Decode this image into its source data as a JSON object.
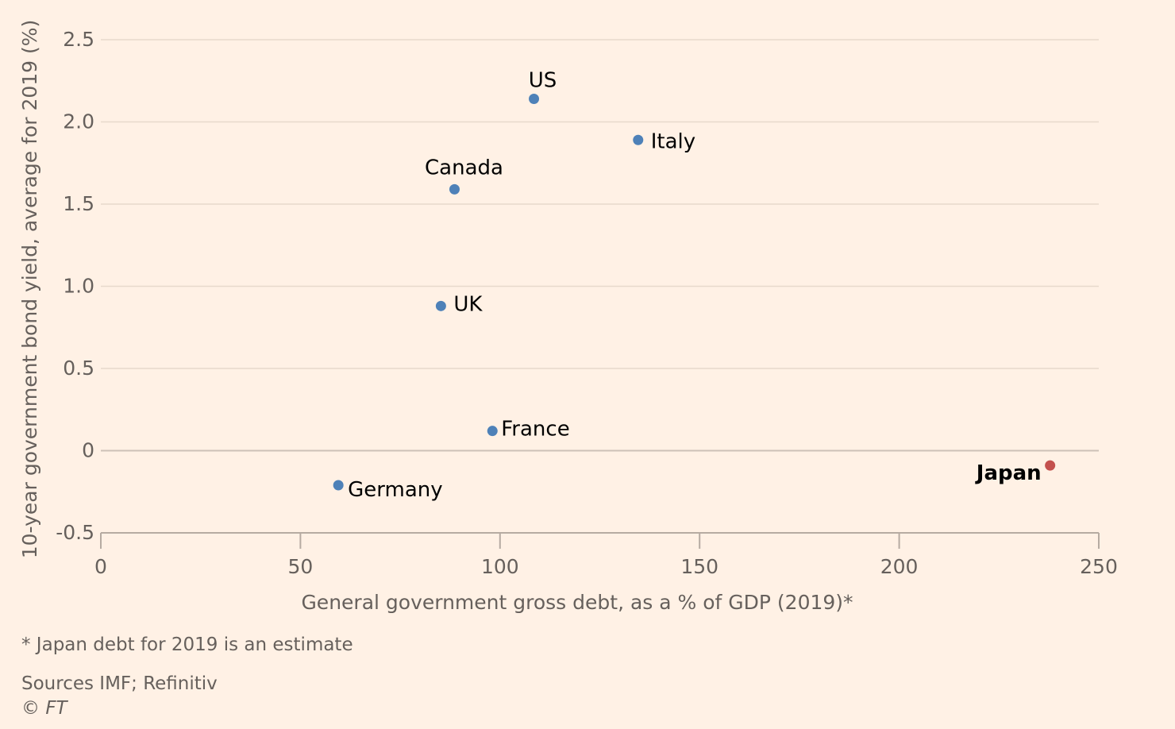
{
  "chart_data": {
    "type": "scatter",
    "xlabel": "General government gross debt, as a % of GDP (2019)*",
    "ylabel": "10-year government bond yield, average for 2019 (%)",
    "xlim": [
      0,
      250
    ],
    "ylim": [
      -0.5,
      2.5
    ],
    "x_ticks": [
      "0",
      "50",
      "100",
      "150",
      "200",
      "250"
    ],
    "y_ticks": [
      "-0.5",
      "0",
      "0.5",
      "1.0",
      "1.5",
      "2.0",
      "2.5"
    ],
    "grid": "horizontal",
    "points": [
      {
        "label": "US",
        "x": 108.5,
        "y": 2.14,
        "color": "#4e81b8",
        "highlight": false
      },
      {
        "label": "Italy",
        "x": 134.6,
        "y": 1.89,
        "color": "#4e81b8",
        "highlight": false
      },
      {
        "label": "Canada",
        "x": 88.6,
        "y": 1.59,
        "color": "#4e81b8",
        "highlight": false
      },
      {
        "label": "UK",
        "x": 85.2,
        "y": 0.88,
        "color": "#4e81b8",
        "highlight": false
      },
      {
        "label": "France",
        "x": 98.1,
        "y": 0.12,
        "color": "#4e81b8",
        "highlight": false
      },
      {
        "label": "Germany",
        "x": 59.5,
        "y": -0.21,
        "color": "#4e81b8",
        "highlight": false
      },
      {
        "label": "Japan",
        "x": 237.8,
        "y": -0.09,
        "color": "#c4514e",
        "highlight": true
      }
    ]
  },
  "footnote": "* Japan debt for 2019 is an estimate",
  "source": "Sources IMF; Refinitiv",
  "copyright": {
    "symbol": "©",
    "name": "FT"
  }
}
